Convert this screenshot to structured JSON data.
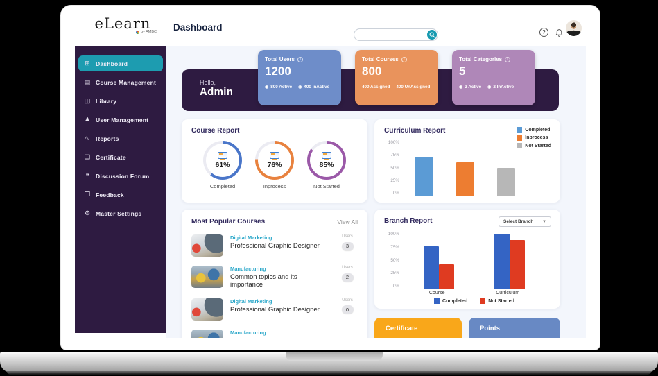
{
  "logo": {
    "brand": "eLearn",
    "byline": "by AMBC"
  },
  "header": {
    "title": "Dashboard",
    "search_placeholder": "",
    "help_label": "?"
  },
  "sidebar": {
    "items": [
      {
        "id": "dashboard",
        "label": "Dashboard",
        "icon": "⊞",
        "active": true
      },
      {
        "id": "course-management",
        "label": "Course Management",
        "icon": "▤",
        "active": false
      },
      {
        "id": "library",
        "label": "Library",
        "icon": "◫",
        "active": false
      },
      {
        "id": "user-management",
        "label": "User Management",
        "icon": "♟",
        "active": false
      },
      {
        "id": "reports",
        "label": "Reports",
        "icon": "∿",
        "active": false
      },
      {
        "id": "certificate",
        "label": "Certificate",
        "icon": "❏",
        "active": false
      },
      {
        "id": "discussion-forum",
        "label": "Discussion Forum",
        "icon": "❝",
        "active": false
      },
      {
        "id": "feedback",
        "label": "Feedback",
        "icon": "❐",
        "active": false
      },
      {
        "id": "master-settings",
        "label": "Master Settings",
        "icon": "⚙",
        "active": false
      }
    ]
  },
  "banner": {
    "greeting": "Hello,",
    "name": "Admin"
  },
  "stats": [
    {
      "title": "Total Users",
      "value": "1200",
      "color": "#6e8dc9",
      "footer": [
        {
          "bullet": true,
          "text": "800 Active"
        },
        {
          "bullet": true,
          "text": "400 InActive"
        }
      ]
    },
    {
      "title": "Total Courses",
      "value": "800",
      "color": "#e9935c",
      "footer": [
        {
          "bullet": false,
          "text": "400 Assigned"
        },
        {
          "bullet": false,
          "text": "400 UnAssigned"
        }
      ]
    },
    {
      "title": "Total Categories",
      "value": "5",
      "color": "#af87b8",
      "footer": [
        {
          "bullet": true,
          "text": "3 Active"
        },
        {
          "bullet": true,
          "text": "2 InActive"
        }
      ]
    }
  ],
  "chart_data": [
    {
      "type": "donut",
      "title": "Course Report",
      "segments": [
        {
          "label": "Completed",
          "value": 61,
          "color": "#4a76c9"
        },
        {
          "label": "Inprocess",
          "value": 76,
          "color": "#e8823f"
        },
        {
          "label": "Not Started",
          "value": 85,
          "color": "#9b59a8"
        }
      ],
      "track_color": "#ebebf2"
    },
    {
      "type": "bar",
      "title": "Curriculum Report",
      "categories": [
        "Completed",
        "Inprocess",
        "Not Started"
      ],
      "values": [
        70,
        60,
        50
      ],
      "colors": [
        "#5b9bd5",
        "#ed7d31",
        "#b7b7b7"
      ],
      "ylim": [
        0,
        100
      ],
      "yticks": [
        "0%",
        "25%",
        "50%",
        "75%",
        "100%"
      ],
      "legend": [
        "Completed",
        "Inprocess",
        "Not Started"
      ],
      "legend_position": "top-right",
      "grid": false
    },
    {
      "type": "bar",
      "title": "Branch Report",
      "categories": [
        "Course",
        "Curriculum"
      ],
      "series": [
        {
          "name": "Completed",
          "values": [
            75,
            96
          ],
          "color": "#3464c4"
        },
        {
          "name": "Not Started",
          "values": [
            43,
            85
          ],
          "color": "#df3b21"
        }
      ],
      "ylim": [
        0,
        100
      ],
      "yticks": [
        "0%",
        "25%",
        "50%",
        "75%",
        "100%"
      ],
      "legend_position": "bottom",
      "select_label": "Select Branch",
      "grid": false
    }
  ],
  "popular_courses": {
    "title": "Most Popular Courses",
    "view_all": "View All",
    "users_label": "Users",
    "items": [
      {
        "category": "Digital Marketing",
        "title": "Professional Graphic Designer",
        "users": "3",
        "thumb": "desk"
      },
      {
        "category": "Manufacturing",
        "title": "Common topics and its importance",
        "users": "2",
        "thumb": "factory"
      },
      {
        "category": "Digital Marketing",
        "title": "Professional Graphic Designer",
        "users": "0",
        "thumb": "desk"
      },
      {
        "category": "Manufacturing",
        "title": "",
        "users": "",
        "thumb": "factory"
      }
    ]
  },
  "bottom_cards": [
    {
      "label": "Certificate",
      "color": "#f9a71a"
    },
    {
      "label": "Points",
      "color": "#6889c4"
    }
  ]
}
